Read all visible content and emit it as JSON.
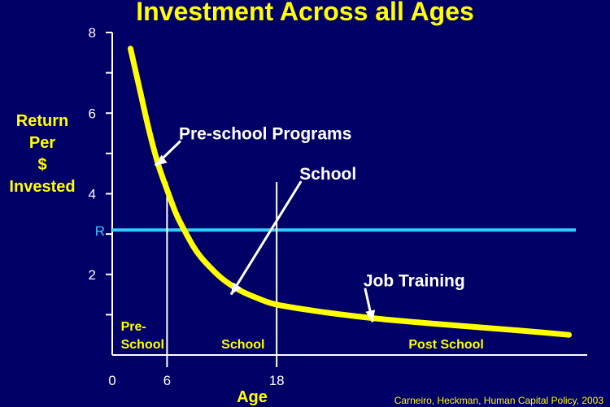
{
  "title": "Investment Across all Ages",
  "ylabel_lines": [
    "Return",
    "Per",
    "$",
    "Invested"
  ],
  "xlabel": "Age",
  "credit": "Carneiro, Heckman, Human Capital Policy, 2003",
  "colors": {
    "background": "#000066",
    "curve": "#ffff00",
    "rate_line": "#33ccff",
    "text": "#ffffff",
    "label": "#ffff00"
  },
  "chart_data": {
    "type": "line",
    "title": "Investment Across all Ages",
    "xlabel": "Age",
    "ylabel": "Return Per $ Invested",
    "y_ticks": [
      2,
      4,
      6,
      8
    ],
    "x_ticks": [
      0,
      6,
      18
    ],
    "x_range": [
      0,
      52
    ],
    "y_range": [
      0,
      8
    ],
    "grid": false,
    "series": [
      {
        "x": [
          2,
          3,
          4,
          5,
          6,
          7,
          8,
          9,
          10,
          12,
          14,
          16,
          18,
          22,
          26,
          30,
          35,
          40,
          45,
          50
        ],
        "y": [
          7.6,
          6.6,
          5.6,
          4.75,
          4.1,
          3.5,
          3.05,
          2.65,
          2.35,
          1.9,
          1.6,
          1.4,
          1.25,
          1.1,
          0.98,
          0.88,
          0.78,
          0.69,
          0.6,
          0.5
        ]
      }
    ],
    "reference_line": {
      "label": "R",
      "y": 3.1
    },
    "stage_dividers": [
      6,
      18
    ],
    "stages": [
      {
        "label_lines": [
          "Pre-",
          "School"
        ],
        "x": 0.5
      },
      {
        "label_lines": [
          "School"
        ],
        "x": 11.5
      },
      {
        "label_lines": [
          "Post School"
        ],
        "x": 32
      }
    ],
    "annotations": [
      {
        "text": "Pre-school Programs",
        "x": 7.3,
        "y": 5.35,
        "arrow_to": [
          4.7,
          4.7
        ]
      },
      {
        "text": "School",
        "x": 20.5,
        "y": 4.35,
        "arrow_to": [
          13,
          1.5
        ]
      },
      {
        "text": "Job Training",
        "x": 27.5,
        "y": 1.7,
        "arrow_to": [
          28.5,
          0.82
        ]
      }
    ]
  }
}
